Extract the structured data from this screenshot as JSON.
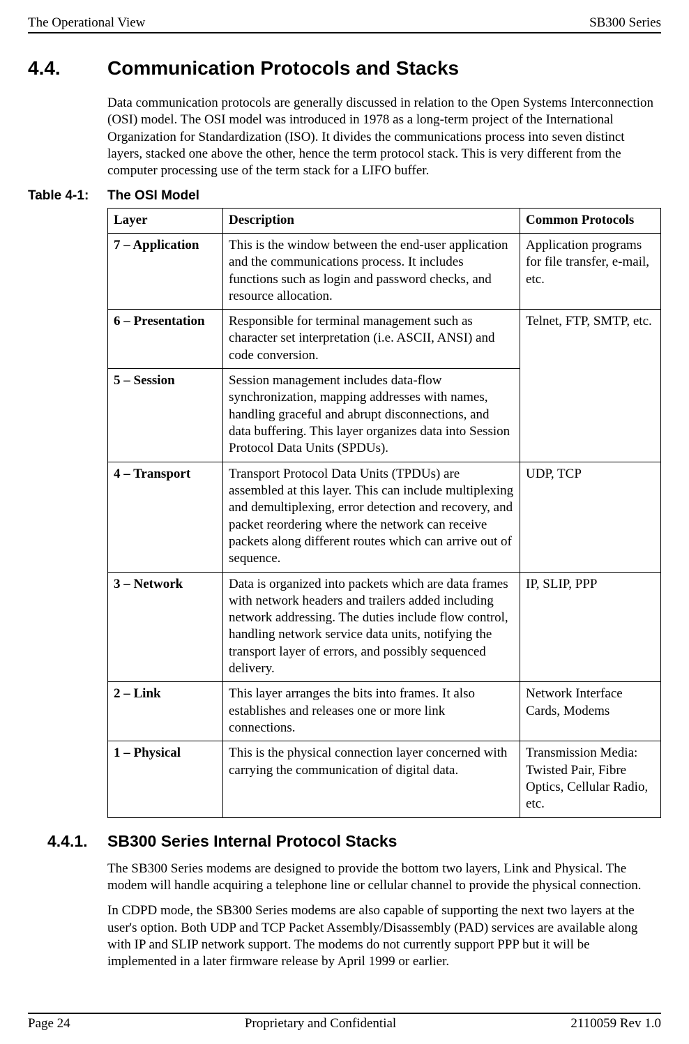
{
  "header": {
    "left": "The Operational View",
    "right": "SB300 Series"
  },
  "section": {
    "number": "4.4.",
    "title": "Communication Protocols and Stacks",
    "intro": "Data communication protocols are generally discussed in relation to the Open Systems Interconnection (OSI) model.  The OSI model was introduced in 1978 as a long-term project of the International Organization for Standardization (ISO).  It divides the communications process into seven distinct layers, stacked one above the other, hence the term protocol stack.  This is very different from the computer processing use of the term stack for a LIFO buffer."
  },
  "table": {
    "label": "Table 4-1:",
    "caption": "The OSI Model",
    "columns": [
      "Layer",
      "Description",
      "Common Protocols"
    ],
    "rows": [
      {
        "layer": "7 – Application",
        "desc": "This is the window between the end-user application and the communications process.  It includes functions such as login and password checks, and resource allocation.",
        "protocols": "Application programs for file transfer, e-mail, etc."
      },
      {
        "layer": "6 – Presentation",
        "desc": "Responsible for terminal management such as character set interpretation (i.e. ASCII, ANSI) and code conversion.",
        "protocols": "Telnet, FTP, SMTP, etc.",
        "protocols_rowspan": 2
      },
      {
        "layer": "5 – Session",
        "desc": "Session management includes data-flow synchronization, mapping addresses with names, handling graceful and abrupt disconnections, and data buffering.  This layer organizes data into Session Protocol Data Units (SPDUs).",
        "protocols_skip": true
      },
      {
        "layer": "4 – Transport",
        "desc": "Transport Protocol Data Units (TPDUs) are assembled at this layer.  This can include multiplexing and demultiplexing, error detection and recovery, and packet reordering where the network can receive packets along different routes which can arrive out of sequence.",
        "protocols": "UDP, TCP"
      },
      {
        "layer": "3 – Network",
        "desc": "Data is organized into packets which are data frames with network headers and trailers added including network addressing.  The duties include flow control, handling network service data units, notifying the transport layer of errors, and possibly sequenced delivery.",
        "protocols": "IP, SLIP, PPP"
      },
      {
        "layer": "2 – Link",
        "desc": "This layer arranges the bits into frames.  It also establishes and releases one or more link connections.",
        "protocols": "Network Interface Cards, Modems"
      },
      {
        "layer": "1 – Physical",
        "desc": "This is the physical connection layer concerned with carrying the communication of digital data.",
        "protocols": "Transmission Media: Twisted Pair, Fibre Optics, Cellular Radio, etc."
      }
    ]
  },
  "subsection": {
    "number": "4.4.1.",
    "title": "SB300 Series Internal Protocol Stacks",
    "paragraphs": [
      "The SB300 Series modems are designed to provide the bottom two layers, Link and Physical.  The modem will handle acquiring a telephone line or cellular channel to provide the physical connection.",
      "In CDPD mode, the SB300 Series modems are also capable of supporting the next two layers at the user's option.  Both UDP and TCP Packet Assembly/Disassembly (PAD) services are available along with IP and SLIP network support.  The modems do not currently support PPP but it will be implemented in a later firmware release by April 1999 or earlier."
    ]
  },
  "footer": {
    "left": "Page 24",
    "center": "Proprietary and Confidential",
    "right": "2110059 Rev 1.0"
  }
}
